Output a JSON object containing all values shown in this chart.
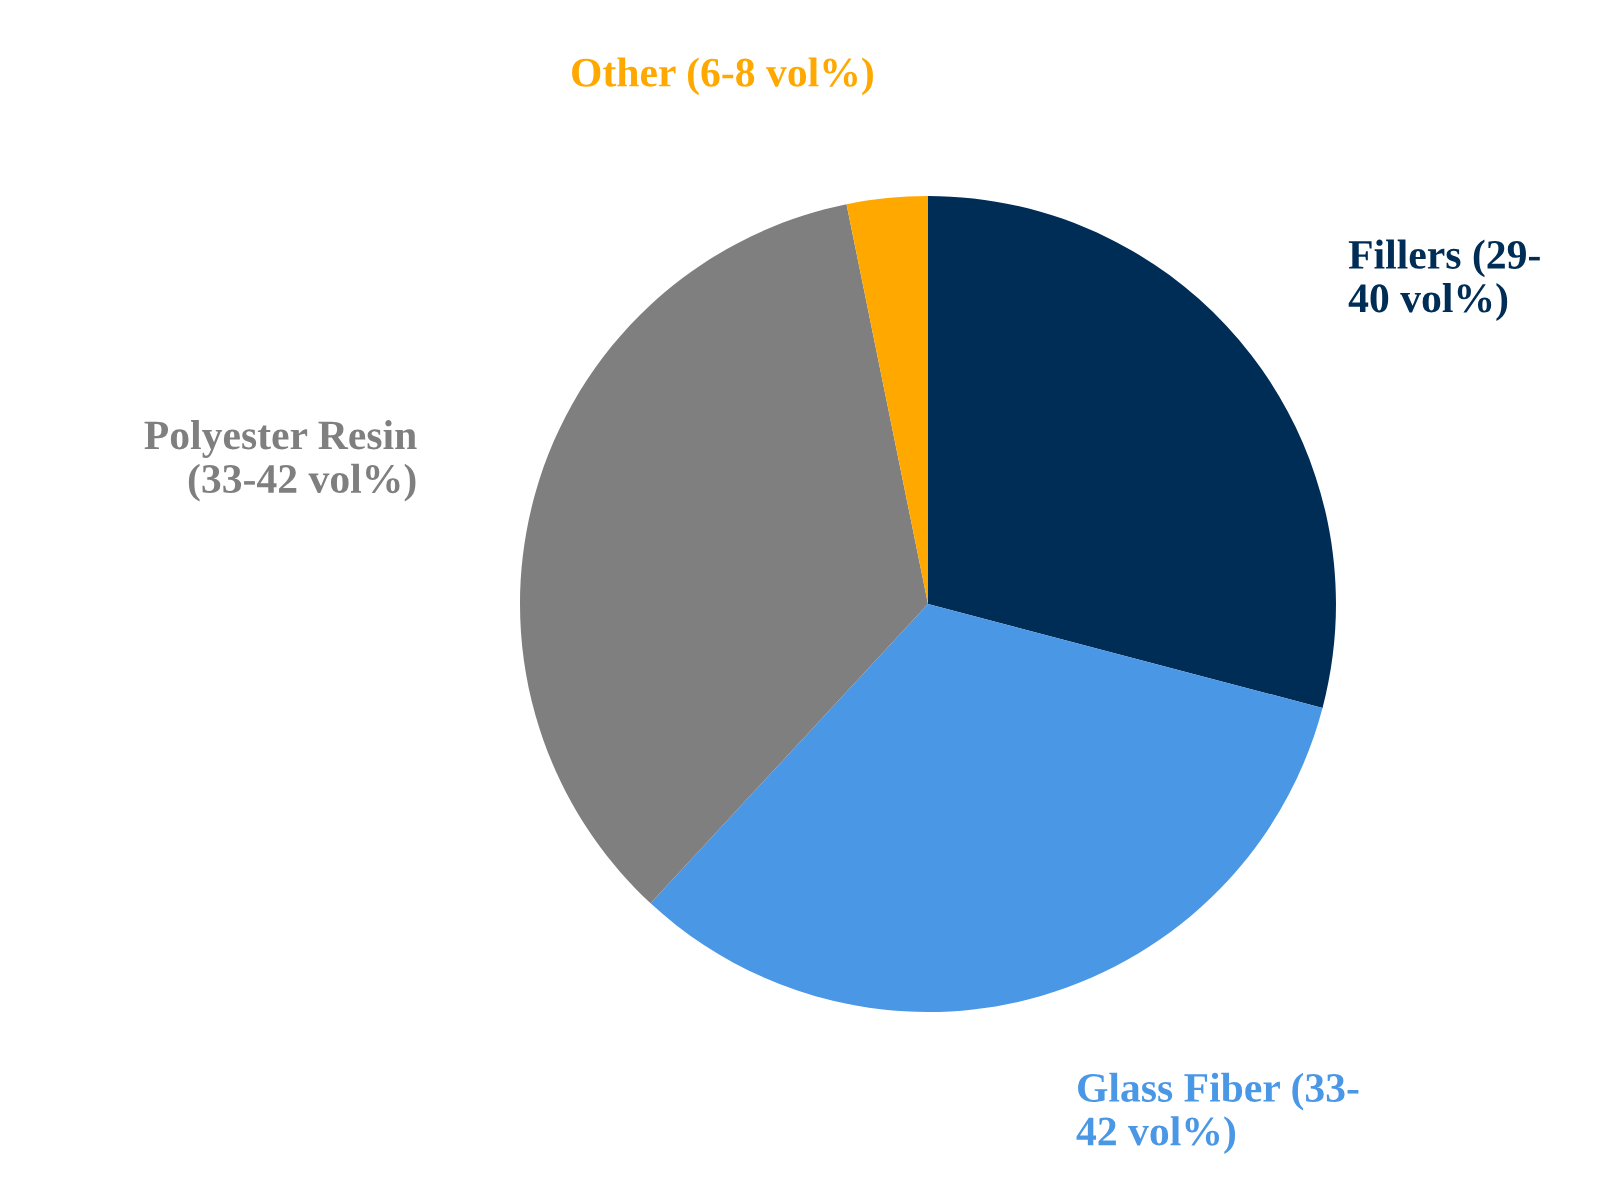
{
  "chart_data": {
    "type": "pie",
    "categories": [
      "Fillers (29-\n40 vol%)",
      "Glass Fiber (33-\n42 vol%)",
      "Polyester Resin\n(33-42 vol%)",
      "Other (6-8 vol%)"
    ],
    "values": [
      29.1,
      32.8,
      34.9,
      3.2
    ],
    "colors": [
      "#002d56",
      "#4a97e6",
      "#7f7f7f",
      "#ffa800"
    ]
  }
}
